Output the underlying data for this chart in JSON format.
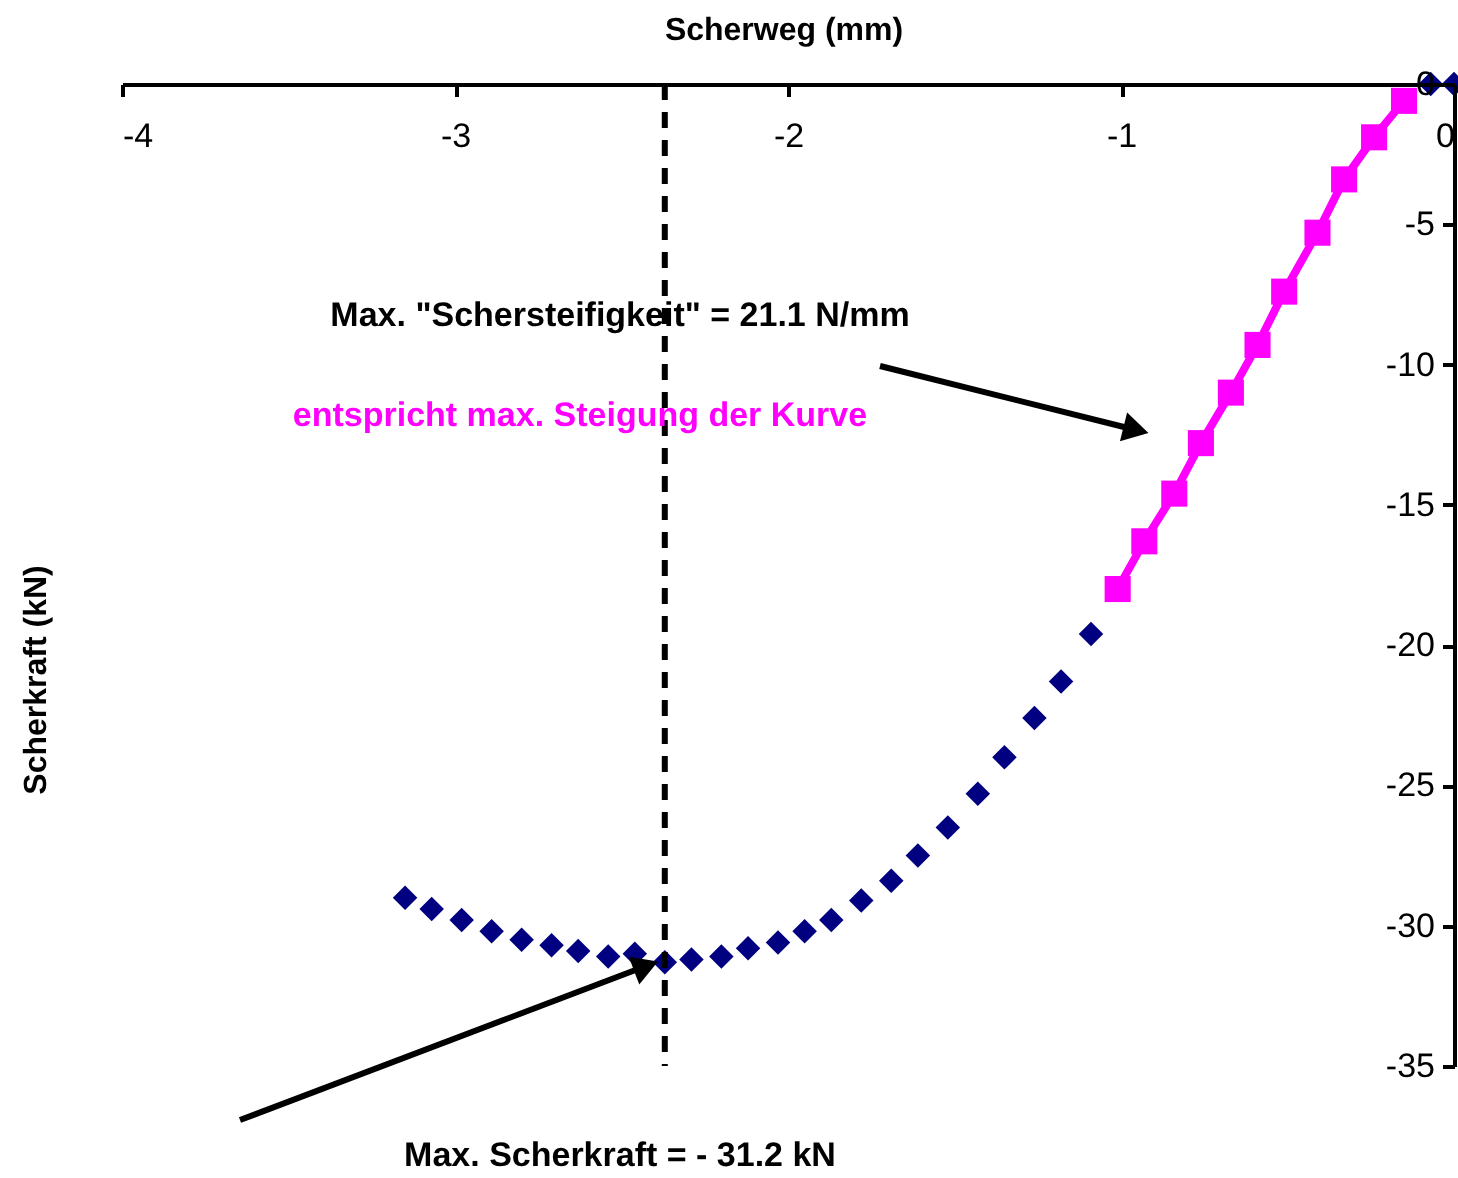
{
  "chart_data": {
    "type": "scatter",
    "xlabel": "Scherweg (mm)",
    "ylabel": "Scherkraft (kN)",
    "xlim": [
      -4,
      0
    ],
    "xticks": [
      -4,
      -3,
      -2,
      -1,
      0
    ],
    "ylim": [
      -35,
      0
    ],
    "yticks": [
      -35,
      -30,
      -25,
      -20,
      -15,
      -10,
      -5,
      0
    ],
    "series": [
      {
        "marker": "diamond",
        "color": "#000080",
        "x": [
          -3.15,
          -3.07,
          -2.98,
          -2.89,
          -2.8,
          -2.71,
          -2.63,
          -2.54,
          -2.46,
          -2.37,
          -2.29,
          -2.2,
          -2.12,
          -2.03,
          -1.95,
          -1.87,
          -1.78,
          -1.69,
          -1.61,
          -1.52,
          -1.43,
          -1.35,
          -1.26,
          -1.18,
          -1.09,
          -0.07,
          0
        ],
        "values": [
          -29.0,
          -29.4,
          -29.8,
          -30.2,
          -30.5,
          -30.7,
          -30.9,
          -31.1,
          -31.0,
          -31.3,
          -31.2,
          -31.1,
          -30.8,
          -30.6,
          -30.2,
          -29.8,
          -29.1,
          -28.4,
          -27.5,
          -26.5,
          -25.3,
          -24.0,
          -22.6,
          -21.3,
          -19.6,
          0,
          0
        ]
      },
      {
        "type": "line",
        "marker": "square",
        "line_style": "solid",
        "color": "#ff00ff",
        "x": [
          -1.01,
          -0.93,
          -0.84,
          -0.76,
          -0.67,
          -0.59,
          -0.51,
          -0.41,
          -0.33,
          -0.24,
          -0.15
        ],
        "values": [
          -18.0,
          -16.3,
          -14.6,
          -12.8,
          -11.0,
          -9.3,
          -7.4,
          -5.3,
          -3.4,
          -1.9,
          -0.6
        ]
      }
    ],
    "ref_lines": [
      {
        "axis": "x",
        "value": -2.37,
        "color": "#000000",
        "line_style": "dashed"
      }
    ],
    "annotations": [
      "Max. \"Schersteifigkeit\" = 21.1 N/mm",
      "entspricht max. Steigung der Kurve",
      "Max. Scherkraft = - 31.2 kN"
    ]
  }
}
